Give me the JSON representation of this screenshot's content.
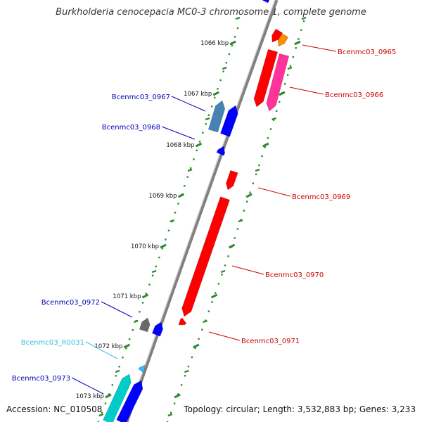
{
  "title": "Burkholderia cenocepacia MC0-3 chromosome 1, complete genome",
  "footer": {
    "accession": "Accession: NC_010508",
    "topology": "Topology: circular; Length: 3,532,883 bp; Genes: 3,233"
  },
  "colors": {
    "backbone": "#808080",
    "tick": "#2e8b2e",
    "label_forward": "#cc0000",
    "label_reverse": "#0000b4",
    "label_rna": "#33bbdd"
  },
  "kbp_ticks": [
    {
      "kbp": 1066,
      "label": "1066 kbp"
    },
    {
      "kbp": 1067,
      "label": "1067 kbp"
    },
    {
      "kbp": 1068,
      "label": "1068 kbp"
    },
    {
      "kbp": 1069,
      "label": "1069 kbp"
    },
    {
      "kbp": 1070,
      "label": "1070 kbp"
    },
    {
      "kbp": 1071,
      "label": "1071 kbp"
    },
    {
      "kbp": 1072,
      "label": "1072 kbp"
    },
    {
      "kbp": 1073,
      "label": "1073 kbp"
    }
  ],
  "genes": [
    {
      "name": "Bcenmc03_0965",
      "strand": "forward",
      "color": "#ff8c00"
    },
    {
      "name": "Bcenmc03_0966",
      "strand": "forward",
      "color": "#ff3399"
    },
    {
      "name": "Bcenmc03_0967",
      "strand": "reverse",
      "color": "#4682b4"
    },
    {
      "name": "Bcenmc03_0968",
      "strand": "reverse",
      "color": "#0000ff"
    },
    {
      "name": "Bcenmc03_0969",
      "strand": "forward",
      "color": "#ff0000"
    },
    {
      "name": "Bcenmc03_0970",
      "strand": "forward",
      "color": "#ff0000"
    },
    {
      "name": "Bcenmc03_0971",
      "strand": "forward",
      "color": "#ff0000"
    },
    {
      "name": "Bcenmc03_0972",
      "strand": "reverse",
      "color": "#696969"
    },
    {
      "name": "Bcenmc03_R0031",
      "strand": "reverse",
      "color": "#33bbff"
    },
    {
      "name": "Bcenmc03_0973",
      "strand": "reverse",
      "color": "#00cccc"
    }
  ]
}
